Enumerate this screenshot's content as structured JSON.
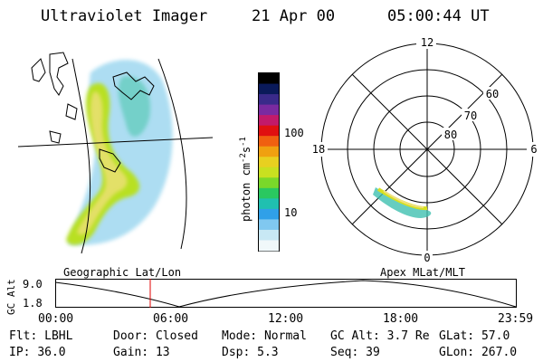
{
  "header": {
    "title": "Ultraviolet Imager",
    "date": "21 Apr 00",
    "time": "05:00:44 UT"
  },
  "colorbar": {
    "unit": "photon cm^-2 s^-1",
    "tick_labels": [
      "100",
      "10"
    ],
    "colors": [
      "#000000",
      "#0a1a5a",
      "#3a2a8a",
      "#7a2aa0",
      "#c21a6a",
      "#e01010",
      "#f06010",
      "#f0a010",
      "#e8d020",
      "#c8e020",
      "#7ad82a",
      "#2ac860",
      "#20c0b0",
      "#30a0e8",
      "#80c8f0",
      "#c8e8f4",
      "#f0f8fa"
    ]
  },
  "polar_plot": {
    "mlt_labels": {
      "top": "12",
      "left": "18",
      "right": "6",
      "bottom": "0"
    },
    "lat_labels": [
      "60",
      "70",
      "80"
    ]
  },
  "panel_labels": {
    "left": "Geographic Lat/Lon",
    "right": "Apex MLat/MLT"
  },
  "altitude_plot": {
    "ylabel": "GC Alt",
    "y_ticks": [
      "9.0",
      "1.8"
    ],
    "x_ticks": [
      "00:00",
      "06:00",
      "12:00",
      "18:00",
      "23:59"
    ],
    "current_time_marker": "05:00"
  },
  "status": {
    "row1": [
      {
        "label": "Flt:",
        "value": "LBHL"
      },
      {
        "label": "Door:",
        "value": "Closed"
      },
      {
        "label": "Mode:",
        "value": "Normal"
      },
      {
        "label": "GC Alt:",
        "value": "3.7 Re"
      },
      {
        "label": "GLat:",
        "value": "57.0"
      }
    ],
    "row2": [
      {
        "label": "IP:",
        "value": "36.0"
      },
      {
        "label": "Gain:",
        "value": "13"
      },
      {
        "label": "Dsp:",
        "value": "5.3"
      },
      {
        "label": "Seq:",
        "value": "39"
      },
      {
        "label": "GLon:",
        "value": "267.0"
      }
    ]
  }
}
